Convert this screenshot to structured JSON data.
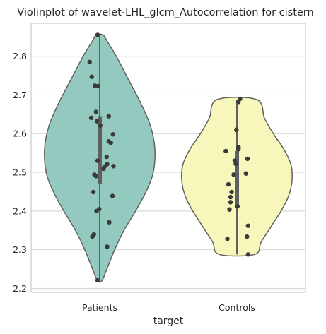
{
  "chart_data": {
    "type": "violin",
    "title": "Violinplot of wavelet-LHL_glcm_Autocorrelation for cistern",
    "xlabel": "target",
    "ylabel": "",
    "ylim": [
      2.19,
      2.885
    ],
    "yticks": [
      "2.2",
      "2.3",
      "2.4",
      "2.5",
      "2.6",
      "2.7",
      "2.8"
    ],
    "grid": true,
    "categories": [
      "Patients",
      "Controls"
    ],
    "colors": [
      "#93c9be",
      "#f7f7bc"
    ],
    "groups": [
      {
        "category": "Patients",
        "min": 2.22,
        "max": 2.855,
        "q1": 2.47,
        "q3": 2.645,
        "density": [
          [
            2.22,
            0.04
          ],
          [
            2.25,
            0.13
          ],
          [
            2.3,
            0.27
          ],
          [
            2.35,
            0.44
          ],
          [
            2.4,
            0.65
          ],
          [
            2.45,
            0.84
          ],
          [
            2.5,
            0.97
          ],
          [
            2.56,
            1.0
          ],
          [
            2.62,
            0.92
          ],
          [
            2.68,
            0.74
          ],
          [
            2.74,
            0.52
          ],
          [
            2.8,
            0.3
          ],
          [
            2.84,
            0.13
          ],
          [
            2.855,
            0.06
          ]
        ],
        "points": [
          [
            2.855,
            -0.04
          ],
          [
            2.785,
            -0.19
          ],
          [
            2.747,
            -0.15
          ],
          [
            2.724,
            -0.09
          ],
          [
            2.723,
            -0.03
          ],
          [
            2.656,
            -0.07
          ],
          [
            2.645,
            0.17
          ],
          [
            2.641,
            -0.16
          ],
          [
            2.632,
            -0.05
          ],
          [
            2.621,
            0.01
          ],
          [
            2.598,
            0.25
          ],
          [
            2.58,
            0.17
          ],
          [
            2.576,
            0.21
          ],
          [
            2.54,
            0.13
          ],
          [
            2.53,
            -0.04
          ],
          [
            2.521,
            0.14
          ],
          [
            2.516,
            0.26
          ],
          [
            2.515,
            0.09
          ],
          [
            2.509,
            0.07
          ],
          [
            2.494,
            -0.1
          ],
          [
            2.49,
            -0.07
          ],
          [
            2.449,
            -0.12
          ],
          [
            2.439,
            0.24
          ],
          [
            2.405,
            -0.01
          ],
          [
            2.4,
            -0.06
          ],
          [
            2.371,
            0.18
          ],
          [
            2.34,
            -0.11
          ],
          [
            2.334,
            -0.14
          ],
          [
            2.308,
            0.14
          ],
          [
            2.221,
            -0.04
          ]
        ]
      },
      {
        "category": "Controls",
        "min": 2.288,
        "max": 2.688,
        "q1": 2.41,
        "q3": 2.555,
        "density": [
          [
            2.288,
            0.32
          ],
          [
            2.32,
            0.44
          ],
          [
            2.36,
            0.62
          ],
          [
            2.4,
            0.8
          ],
          [
            2.44,
            0.94
          ],
          [
            2.48,
            1.0
          ],
          [
            2.52,
            0.98
          ],
          [
            2.56,
            0.85
          ],
          [
            2.6,
            0.66
          ],
          [
            2.64,
            0.5
          ],
          [
            2.688,
            0.36
          ]
        ],
        "points": [
          [
            2.69,
            0.06
          ],
          [
            2.682,
            0.03
          ],
          [
            2.61,
            -0.01
          ],
          [
            2.565,
            0.03
          ],
          [
            2.56,
            0.03
          ],
          [
            2.555,
            -0.21
          ],
          [
            2.535,
            0.2
          ],
          [
            2.53,
            -0.04
          ],
          [
            2.522,
            -0.02
          ],
          [
            2.497,
            0.17
          ],
          [
            2.494,
            -0.06
          ],
          [
            2.469,
            -0.16
          ],
          [
            2.449,
            -0.1
          ],
          [
            2.436,
            -0.12
          ],
          [
            2.423,
            -0.12
          ],
          [
            2.412,
            0.01
          ],
          [
            2.404,
            -0.14
          ],
          [
            2.362,
            0.21
          ],
          [
            2.334,
            0.19
          ],
          [
            2.328,
            -0.18
          ],
          [
            2.288,
            0.21
          ]
        ]
      }
    ]
  }
}
